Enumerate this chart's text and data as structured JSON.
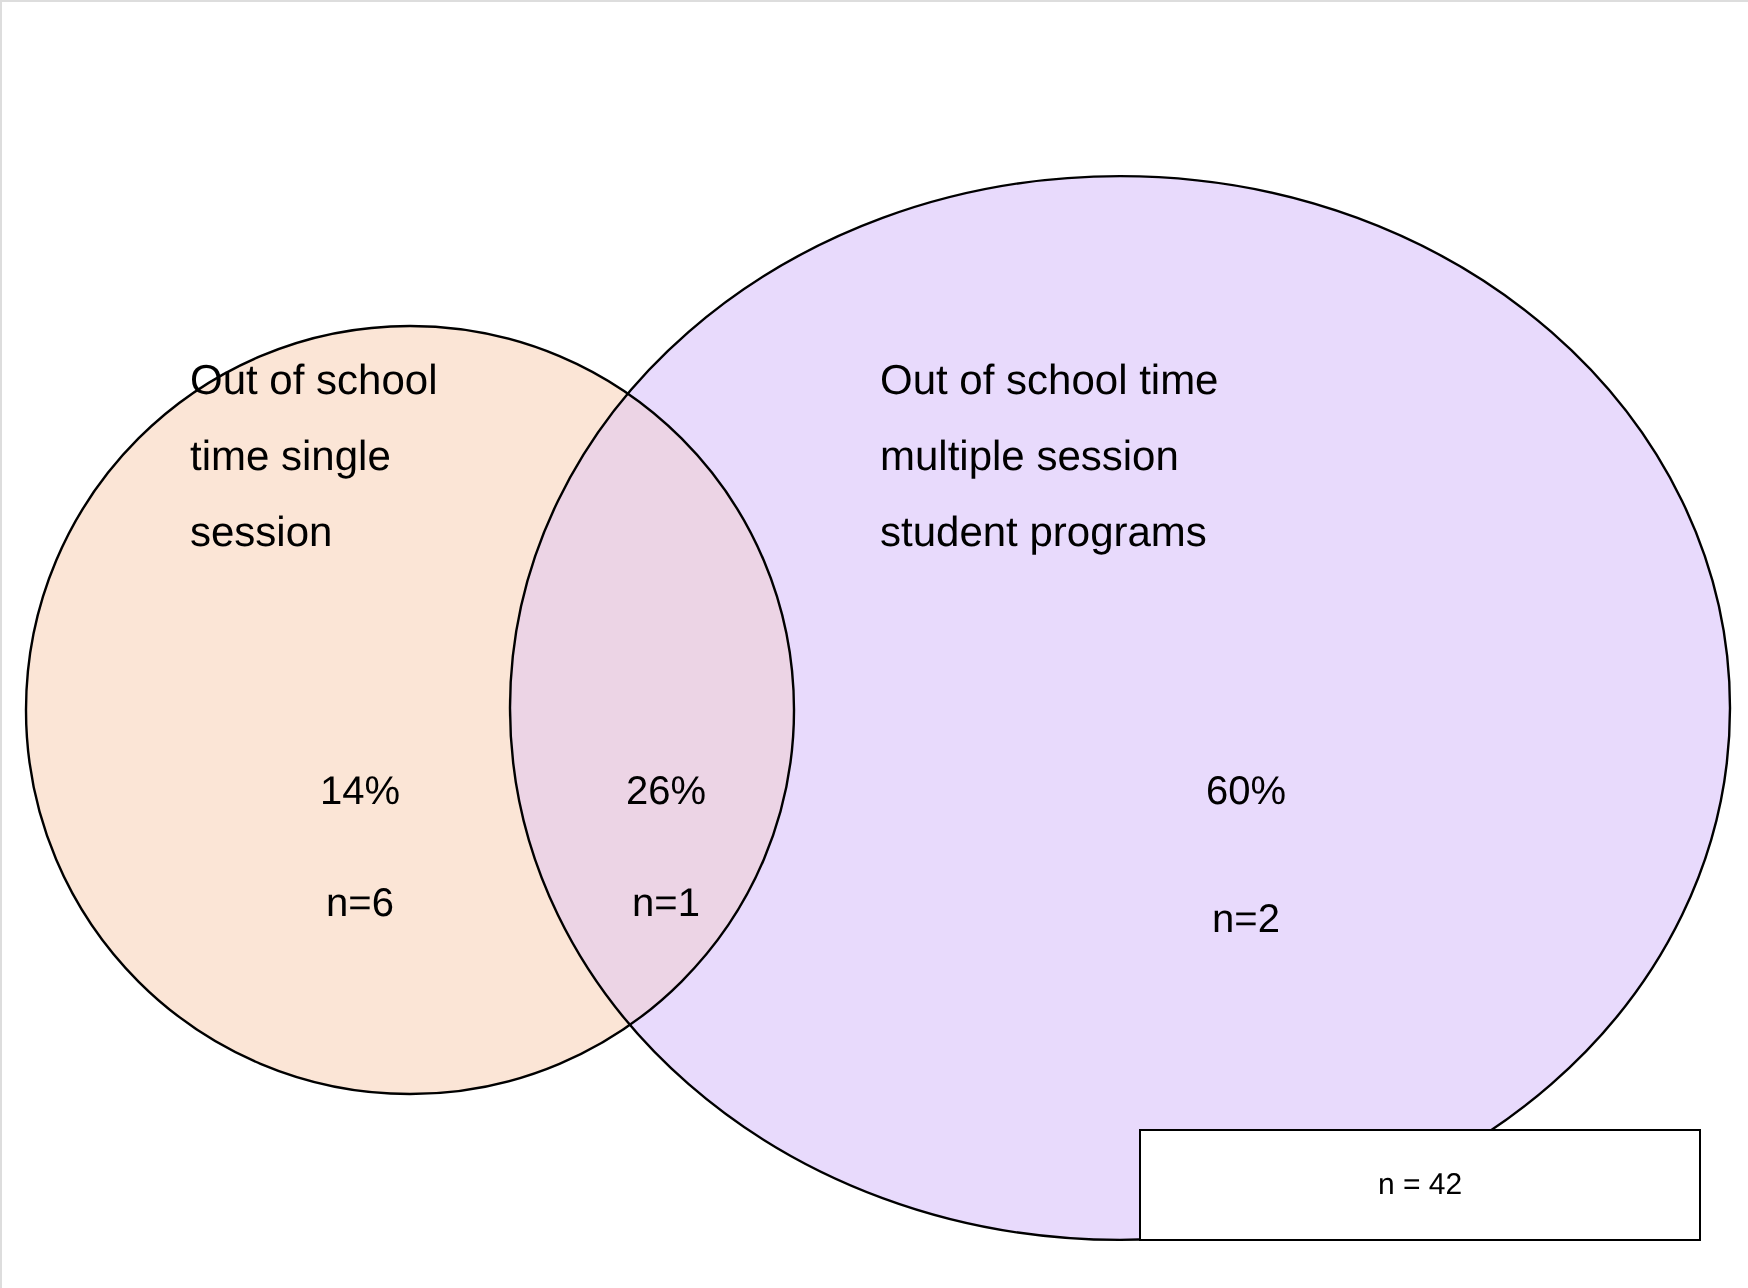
{
  "chart_data": {
    "type": "other",
    "categories": [
      "Out of school time single session",
      null,
      "Out of school time multiple session student programs"
    ],
    "values": [
      14,
      26,
      60
    ],
    "value_labels": [
      "14%",
      "26%",
      "60%"
    ],
    "colors": [
      "#fbe5d6",
      "#ecd4e5",
      "#e8dafc"
    ],
    "annotations": [
      "n=6",
      "n=1",
      "n=2",
      "n = 42"
    ]
  }
}
